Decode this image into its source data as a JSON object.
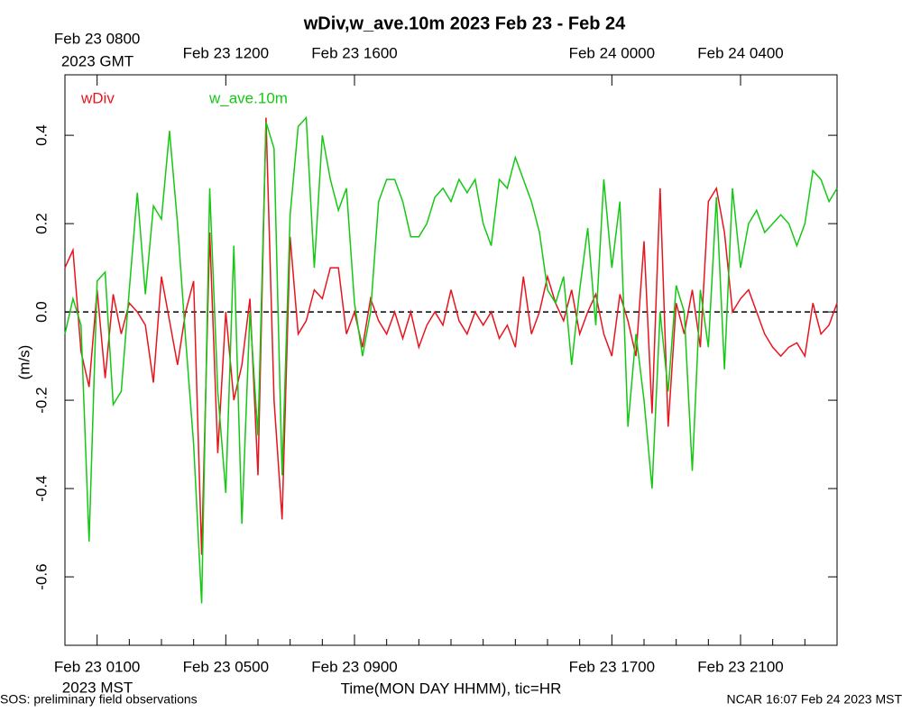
{
  "chart_data": {
    "type": "line",
    "title": "wDiv,w_ave.10m 2023 Feb 23 - Feb 24",
    "xlabel": "Time(MON DAY HHMM), tic=HR",
    "ylabel": "(m/s)",
    "x_unit_label": "2023 MST",
    "top_x_unit_label": "2023 GMT",
    "footer_left": "SOS: preliminary field observations",
    "footer_right": "NCAR 16:07 Feb 24 2023 MST",
    "x": [
      0,
      0.25,
      0.5,
      0.75,
      1,
      1.25,
      1.5,
      1.75,
      2,
      2.25,
      2.5,
      2.75,
      3,
      3.25,
      3.5,
      3.75,
      4,
      4.25,
      4.5,
      4.75,
      5,
      5.25,
      5.5,
      5.75,
      6,
      6.25,
      6.5,
      6.75,
      7,
      7.25,
      7.5,
      7.75,
      8,
      8.25,
      8.5,
      8.75,
      9,
      9.25,
      9.5,
      9.75,
      10,
      10.25,
      10.5,
      10.75,
      11,
      11.25,
      11.5,
      11.75,
      12,
      12.25,
      12.5,
      12.75,
      13,
      13.25,
      13.5,
      13.75,
      14,
      14.25,
      14.5,
      14.75,
      15,
      15.25,
      15.5,
      15.75,
      16,
      16.25,
      16.5,
      16.75,
      17,
      17.25,
      17.5,
      17.75,
      18,
      18.25,
      18.5,
      18.75,
      19,
      19.25,
      19.5,
      19.75,
      20,
      20.25,
      20.5,
      20.75,
      21,
      21.25,
      21.5,
      21.75,
      22,
      22.25,
      22.5,
      22.75,
      23,
      23.25,
      23.5,
      23.75,
      24
    ],
    "series": [
      {
        "name": "wDiv",
        "color": "#e8141e",
        "values": [
          0.1,
          0.14,
          -0.09,
          -0.17,
          0.05,
          -0.15,
          0.04,
          -0.05,
          0.02,
          0.0,
          -0.03,
          -0.16,
          0.08,
          -0.02,
          -0.12,
          0.0,
          0.07,
          -0.55,
          0.18,
          -0.32,
          0.0,
          -0.2,
          -0.12,
          0.03,
          -0.37,
          0.44,
          -0.2,
          -0.47,
          0.17,
          -0.05,
          -0.02,
          0.05,
          0.03,
          0.1,
          0.1,
          -0.05,
          0.0,
          -0.08,
          0.03,
          -0.02,
          -0.05,
          0.0,
          -0.06,
          0.0,
          -0.08,
          -0.03,
          0.0,
          -0.03,
          0.05,
          -0.02,
          -0.05,
          0.0,
          -0.03,
          0.0,
          -0.06,
          -0.03,
          -0.08,
          0.08,
          -0.05,
          0.0,
          0.08,
          0.02,
          -0.02,
          0.05,
          -0.05,
          0.0,
          0.04,
          -0.05,
          -0.1,
          0.04,
          -0.02,
          -0.1,
          0.16,
          -0.23,
          0.28,
          -0.26,
          0.02,
          -0.05,
          0.05,
          -0.08,
          0.25,
          0.28,
          0.18,
          0.0,
          0.03,
          0.05,
          0.0,
          -0.05,
          -0.08,
          -0.1,
          -0.08,
          -0.07,
          -0.1,
          0.02,
          -0.05,
          -0.03,
          0.02
        ]
      },
      {
        "name": "w_ave.10m",
        "color": "#14c814",
        "values": [
          -0.05,
          0.03,
          -0.03,
          -0.52,
          0.07,
          0.09,
          -0.21,
          -0.18,
          0.05,
          0.27,
          0.04,
          0.24,
          0.21,
          0.41,
          0.2,
          -0.06,
          -0.3,
          -0.66,
          0.28,
          -0.18,
          -0.41,
          0.15,
          -0.48,
          0.0,
          -0.28,
          0.43,
          0.37,
          -0.37,
          0.22,
          0.42,
          0.44,
          0.1,
          0.4,
          0.3,
          0.23,
          0.28,
          0.02,
          -0.1,
          0.0,
          0.25,
          0.3,
          0.3,
          0.25,
          0.17,
          0.17,
          0.2,
          0.26,
          0.28,
          0.25,
          0.3,
          0.27,
          0.3,
          0.2,
          0.15,
          0.3,
          0.28,
          0.35,
          0.3,
          0.25,
          0.18,
          0.05,
          0.02,
          0.08,
          -0.12,
          0.05,
          0.19,
          -0.03,
          0.3,
          0.1,
          0.25,
          -0.26,
          -0.05,
          -0.2,
          -0.4,
          0.0,
          -0.18,
          0.06,
          0.0,
          -0.36,
          0.05,
          -0.08,
          0.26,
          -0.13,
          0.28,
          0.1,
          0.2,
          0.23,
          0.18,
          0.2,
          0.22,
          0.2,
          0.15,
          0.2,
          0.32,
          0.3,
          0.25,
          0.28
        ]
      }
    ],
    "xlim": [
      0,
      24
    ],
    "ylim": [
      -0.755,
      0.537
    ],
    "yticks": [
      -0.6,
      -0.4,
      -0.2,
      {
        "value": 0,
        "label": "0.0"
      },
      0.2,
      0.4
    ],
    "xticks": [
      {
        "value": 1,
        "label": "Feb 23 0100"
      },
      {
        "value": 5,
        "label": "Feb 23 0500"
      },
      {
        "value": 9,
        "label": "Feb 23 0900"
      },
      {
        "value": 17,
        "label": "Feb 23 1700"
      },
      {
        "value": 21,
        "label": "Feb 23 2100"
      }
    ],
    "top_xticks": [
      {
        "value": 1,
        "label": "Feb 23 0800"
      },
      {
        "value": 5,
        "label": "Feb 23 1200"
      },
      {
        "value": 9,
        "label": "Feb 23 1600"
      },
      {
        "value": 17,
        "label": "Feb 24 0000"
      },
      {
        "value": 21,
        "label": "Feb 24 0400"
      }
    ],
    "xticks_minor": [
      0,
      2,
      3,
      4,
      6,
      7,
      8,
      10,
      11,
      12,
      13,
      14,
      15,
      16,
      18,
      19,
      20,
      22,
      23,
      24
    ],
    "zero_line": true
  }
}
